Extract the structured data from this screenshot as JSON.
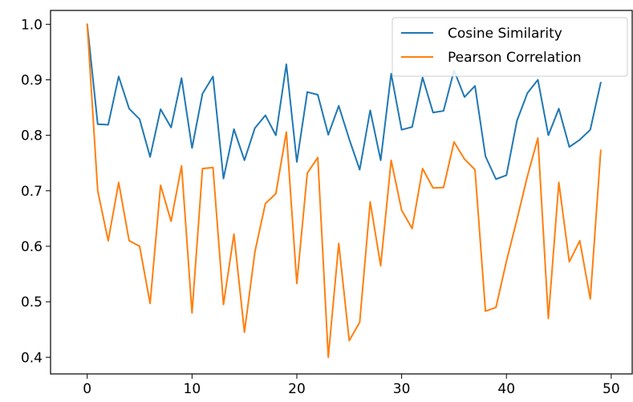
{
  "chart_data": {
    "type": "line",
    "title": "",
    "xlabel": "",
    "ylabel": "",
    "xlim": [
      -3.5,
      52
    ],
    "ylim": [
      0.37,
      1.025
    ],
    "xticks": [
      0,
      10,
      20,
      30,
      40,
      50
    ],
    "yticks": [
      0.4,
      0.5,
      0.6,
      0.7,
      0.8,
      0.9,
      1.0
    ],
    "xtick_labels": [
      "0",
      "10",
      "20",
      "30",
      "40",
      "50"
    ],
    "ytick_labels": [
      "0.4",
      "0.5",
      "0.6",
      "0.7",
      "0.8",
      "0.9",
      "1.0"
    ],
    "grid": false,
    "legend_position": "top-right",
    "x": [
      0,
      1,
      2,
      3,
      4,
      5,
      6,
      7,
      8,
      9,
      10,
      11,
      12,
      13,
      14,
      15,
      16,
      17,
      18,
      19,
      20,
      21,
      22,
      23,
      24,
      25,
      26,
      27,
      28,
      29,
      30,
      31,
      32,
      33,
      34,
      35,
      36,
      37,
      38,
      39,
      40,
      41,
      42,
      43,
      44,
      45,
      46,
      47,
      48,
      49
    ],
    "series": [
      {
        "name": "Cosine Similarity",
        "color": "#1f77b4",
        "values": [
          1.0,
          0.82,
          0.819,
          0.906,
          0.848,
          0.829,
          0.761,
          0.847,
          0.814,
          0.903,
          0.777,
          0.875,
          0.906,
          0.722,
          0.811,
          0.755,
          0.813,
          0.836,
          0.8,
          0.928,
          0.752,
          0.878,
          0.873,
          0.801,
          0.853,
          0.793,
          0.738,
          0.845,
          0.755,
          0.911,
          0.81,
          0.815,
          0.904,
          0.841,
          0.844,
          0.917,
          0.869,
          0.889,
          0.762,
          0.721,
          0.728,
          0.826,
          0.876,
          0.9,
          0.8,
          0.848,
          0.779,
          0.792,
          0.81,
          0.895
        ]
      },
      {
        "name": "Pearson Correlation",
        "color": "#ff7f0e",
        "values": [
          1.0,
          0.7,
          0.61,
          0.715,
          0.61,
          0.6,
          0.497,
          0.71,
          0.645,
          0.745,
          0.48,
          0.74,
          0.742,
          0.495,
          0.622,
          0.445,
          0.59,
          0.677,
          0.695,
          0.806,
          0.533,
          0.732,
          0.76,
          0.4,
          0.605,
          0.43,
          0.463,
          0.68,
          0.565,
          0.755,
          0.665,
          0.632,
          0.74,
          0.705,
          0.706,
          0.788,
          0.757,
          0.738,
          0.483,
          0.49,
          0.573,
          0.648,
          0.726,
          0.795,
          0.47,
          0.715,
          0.572,
          0.61,
          0.505,
          0.773
        ]
      }
    ]
  }
}
